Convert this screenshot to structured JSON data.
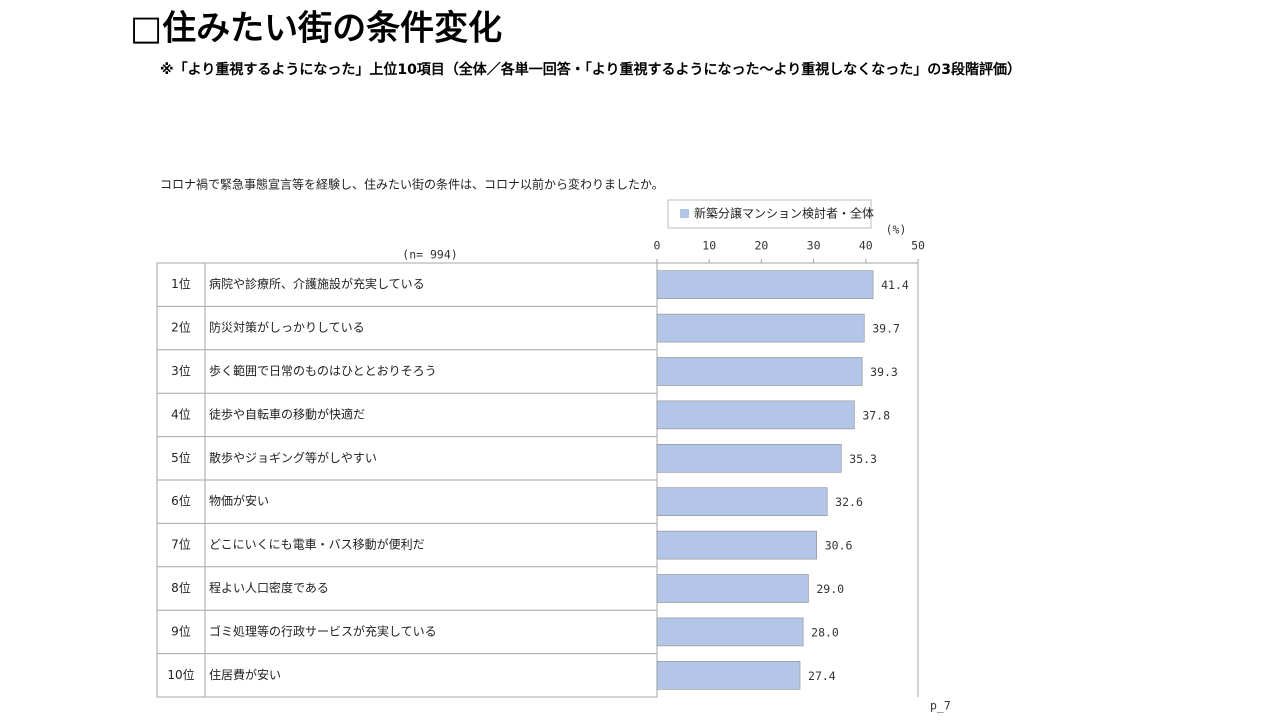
{
  "chart_data": {
    "type": "bar",
    "orientation": "horizontal",
    "title": "□住みたい街の条件変化",
    "subtitle": "※「より重視するようになった」上位10項目（全体／各単一回答・「より重視するようになった～より重視しなくなった」の3段階評価）",
    "question": "コロナ禍で緊急事態宣言等を経験し、住みたい街の条件は、コロナ以前から変わりましたか。",
    "n_label": "(n= 994)",
    "unit": "(%)",
    "ranks": [
      "1位",
      "2位",
      "3位",
      "4位",
      "5位",
      "6位",
      "7位",
      "8位",
      "9位",
      "10位"
    ],
    "categories": [
      "病院や診療所、介護施設が充実している",
      "防災対策がしっかりしている",
      "歩く範囲で日常のものはひととおりそろう",
      "徒歩や自転車の移動が快適だ",
      "散歩やジョギング等がしやすい",
      "物価が安い",
      "どこにいくにも電車・バス移動が便利だ",
      "程よい人口密度である",
      "ゴミ処理等の行政サービスが充実している",
      "住居費が安い"
    ],
    "series": [
      {
        "name": "新築分譲マンション検討者・全体",
        "color": "#b4c6e7",
        "values": [
          41.4,
          39.7,
          39.3,
          37.8,
          35.3,
          32.6,
          30.6,
          29.0,
          28.0,
          27.4
        ],
        "value_labels": [
          "41.4",
          "39.7",
          "39.3",
          "37.8",
          "35.3",
          "32.6",
          "30.6",
          "29.0",
          "28.0",
          "27.4"
        ]
      }
    ],
    "xlim": [
      0,
      50
    ],
    "xticks": [
      0,
      10,
      20,
      30,
      40,
      50
    ]
  },
  "footer": "p_7"
}
